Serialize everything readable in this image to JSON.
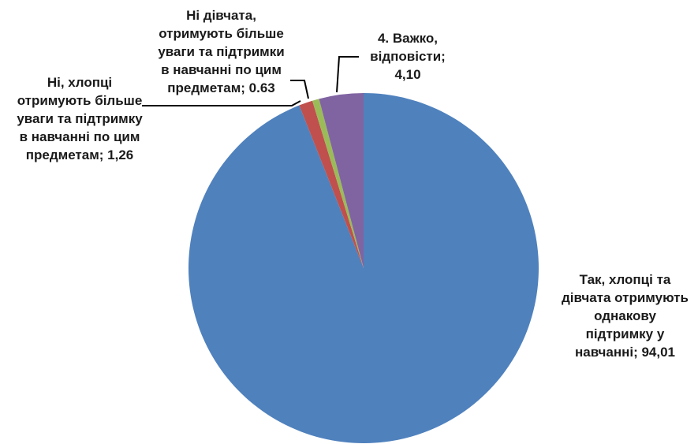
{
  "chart_data": {
    "type": "pie",
    "slices": [
      {
        "label": "Так, хлопці та дівчата отримують однакову підтримку у навчанні",
        "value": 94.01,
        "display": "94,01",
        "color": "#4f81bd"
      },
      {
        "label": "Ні, хлопці отримують більше уваги та підтримку в навчанні по цим предметам",
        "value": 1.26,
        "display": "1,26",
        "color": "#c0504d"
      },
      {
        "label": "Ні дівчата, отримують більше уваги та підтримки в навчанні по цим предметам",
        "value": 0.63,
        "display": "0.63",
        "color": "#9bbb59"
      },
      {
        "label": "4. Важко, відповісти",
        "value": 4.1,
        "display": "4,10",
        "color": "#8064a2"
      }
    ],
    "legend": "none"
  }
}
